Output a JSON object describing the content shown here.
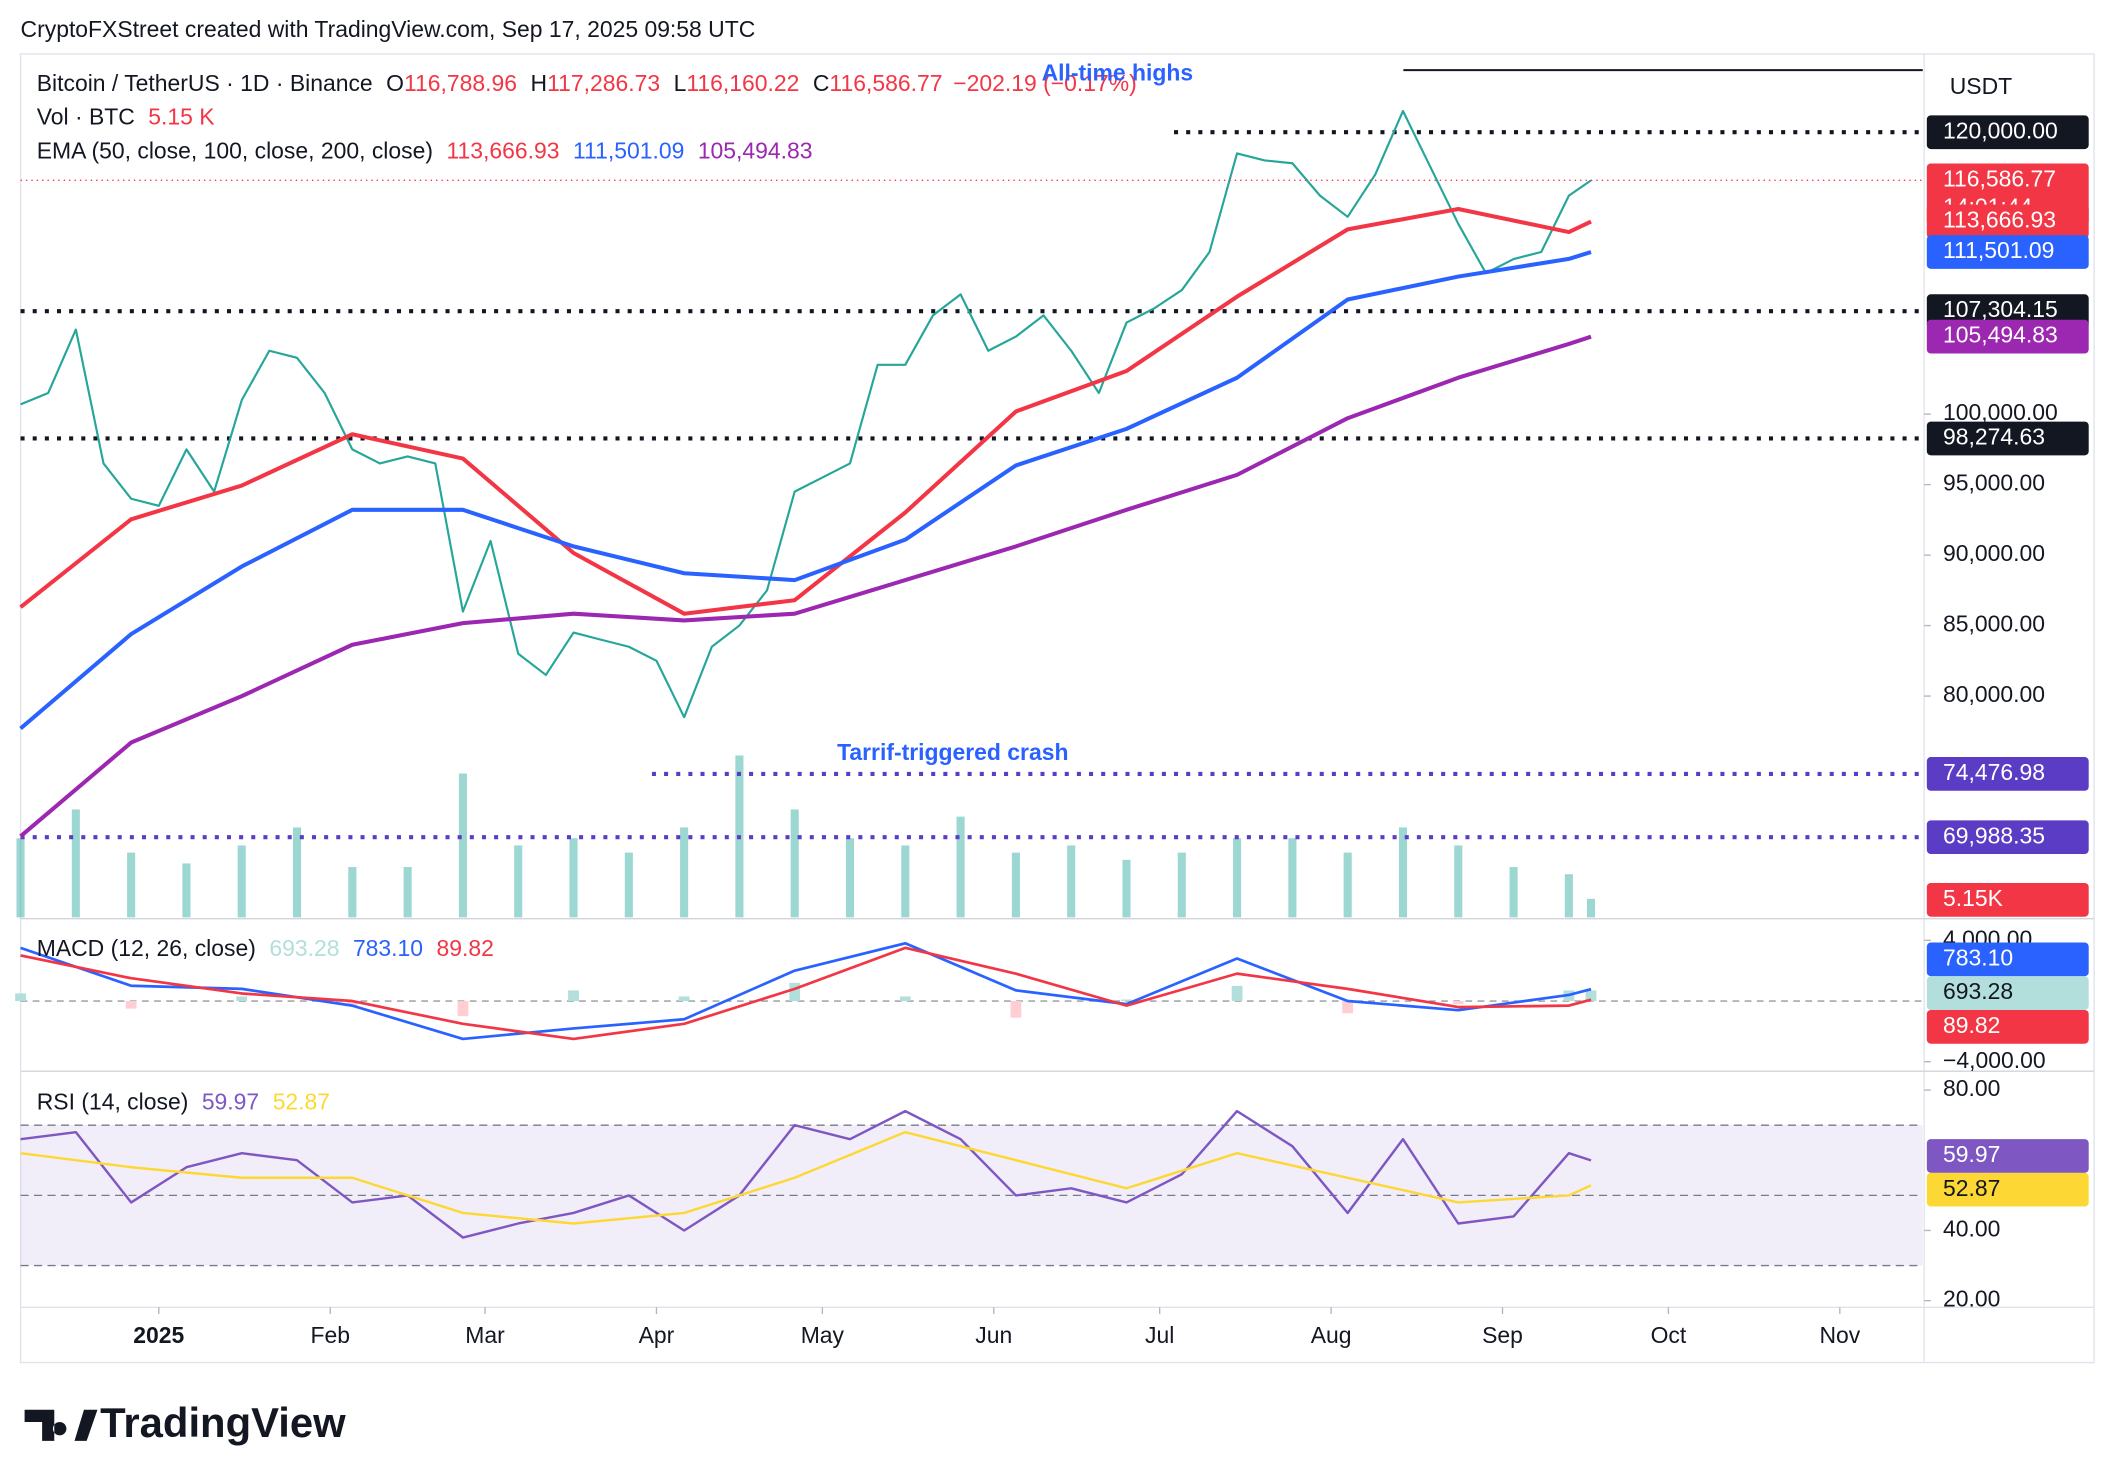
{
  "header": "CryptoFXStreet created with TradingView.com, Sep 17, 2025 09:58 UTC",
  "footer": {
    "brand": "TradingView"
  },
  "chart_data": [
    {
      "type": "line",
      "symbol": "Bitcoin / TetherUS · 1D · Binance",
      "ohlc": [
        {
          "key": "O",
          "value": 116788.96,
          "label": "116,788.96"
        },
        {
          "key": "H",
          "value": 117286.73,
          "label": "117,286.73"
        },
        {
          "key": "L",
          "value": 116160.22,
          "label": "116,160.22"
        },
        {
          "key": "C",
          "value": 116586.77,
          "label": "116,586.77"
        }
      ],
      "change": "−202.19 (−0.17%)",
      "countdown": "14:01:44",
      "currency": "USDT",
      "volume_title": "Vol · BTC",
      "volume_legend": "5.15 K",
      "ema_title": "EMA (50, close, 100, close, 200, close)",
      "annotations": [
        "All-time highs",
        "Tarrif-triggered crash"
      ],
      "xlim": [
        -25,
        319
      ],
      "xticks": [
        {
          "value": 0,
          "label": "2025"
        },
        {
          "value": 31,
          "label": "Feb"
        },
        {
          "value": 59,
          "label": "Mar"
        },
        {
          "value": 90,
          "label": "Apr"
        },
        {
          "value": 120,
          "label": "May"
        },
        {
          "value": 151,
          "label": "Jun"
        },
        {
          "value": 181,
          "label": "Jul"
        },
        {
          "value": 212,
          "label": "Aug"
        },
        {
          "value": 243,
          "label": "Sep"
        },
        {
          "value": 273,
          "label": "Oct"
        },
        {
          "value": 304,
          "label": "Nov"
        }
      ],
      "ylim": [
        64300,
        125550
      ],
      "yticks": [
        {
          "value": 80000,
          "label": "80,000.00"
        },
        {
          "value": 85000,
          "label": "85,000.00"
        },
        {
          "value": 90000,
          "label": "90,000.00"
        },
        {
          "value": 95000,
          "label": "95,000.00"
        },
        {
          "value": 100000,
          "label": "100,000.00"
        }
      ],
      "levels": [
        {
          "value": 124400,
          "color": "#131722",
          "style": "solid"
        },
        {
          "value": 120000,
          "label": "120,000.00",
          "color": "#131722",
          "style": "dotted"
        },
        {
          "value": 107304.15,
          "label": "107,304.15",
          "color": "#131722",
          "style": "dotted"
        },
        {
          "value": 98274.63,
          "label": "98,274.63",
          "color": "#131722",
          "style": "dotted"
        },
        {
          "value": 74476.98,
          "label": "74,476.98",
          "color": "#5b3cc4",
          "style": "dotted"
        },
        {
          "value": 69988.35,
          "label": "69,988.35",
          "color": "#5b3cc4",
          "style": "dotted"
        }
      ],
      "volume": {
        "color": "#26a69a",
        "label_color": "#f23645",
        "x": [
          -25,
          -15,
          -5,
          5,
          15,
          25,
          35,
          45,
          55,
          65,
          75,
          85,
          95,
          105,
          115,
          125,
          135,
          145,
          155,
          165,
          175,
          185,
          195,
          205,
          215,
          225,
          235,
          245,
          255,
          259
        ],
        "values": [
          22,
          30,
          18,
          15,
          20,
          25,
          14,
          14,
          40,
          20,
          22,
          18,
          25,
          45,
          30,
          22,
          20,
          28,
          18,
          20,
          16,
          18,
          22,
          22,
          18,
          25,
          20,
          14,
          12,
          5.15
        ],
        "value_labels": [
          null,
          null,
          null,
          null,
          null,
          null,
          null,
          null,
          null,
          null,
          null,
          null,
          null,
          null,
          null,
          null,
          null,
          null,
          null,
          null,
          null,
          null,
          null,
          null,
          null,
          null,
          null,
          null,
          null,
          "5.15K"
        ]
      },
      "series": [
        {
          "color": "#26a69a",
          "label_color": "#f23645",
          "width": 1.6,
          "x": [
            -25,
            -20,
            -15,
            -10,
            -5,
            0,
            5,
            10,
            15,
            20,
            25,
            30,
            35,
            40,
            45,
            50,
            55,
            60,
            65,
            70,
            75,
            80,
            85,
            90,
            95,
            100,
            105,
            110,
            115,
            120,
            125,
            130,
            135,
            140,
            145,
            150,
            155,
            160,
            165,
            170,
            175,
            180,
            185,
            190,
            195,
            200,
            205,
            210,
            215,
            220,
            225,
            230,
            235,
            240,
            245,
            250,
            255,
            259
          ],
          "values": [
            100700,
            101500,
            106000,
            96500,
            94000,
            93500,
            97500,
            94500,
            101000,
            104500,
            104000,
            101500,
            97500,
            96500,
            97000,
            96500,
            86000,
            91000,
            83000,
            81500,
            84500,
            84000,
            83500,
            82500,
            78500,
            83500,
            85000,
            87500,
            94500,
            95500,
            96500,
            103500,
            103500,
            107000,
            108500,
            104500,
            105500,
            107000,
            104500,
            101500,
            106500,
            107500,
            108800,
            111500,
            118500,
            118000,
            117800,
            115500,
            114000,
            117000,
            121500,
            117500,
            113500,
            110000,
            111000,
            111500,
            115500,
            116586.77
          ],
          "value_labels": [
            null,
            null,
            null,
            null,
            null,
            null,
            null,
            null,
            null,
            null,
            null,
            null,
            null,
            null,
            null,
            null,
            null,
            null,
            null,
            null,
            null,
            null,
            null,
            null,
            null,
            null,
            null,
            null,
            null,
            null,
            null,
            null,
            null,
            null,
            null,
            null,
            null,
            null,
            null,
            null,
            null,
            null,
            null,
            null,
            null,
            null,
            null,
            null,
            null,
            null,
            null,
            null,
            null,
            null,
            null,
            null,
            null,
            "116,586.77"
          ]
        },
        {
          "color": "#f23645",
          "width": 3,
          "x": [
            -25,
            -5,
            15,
            35,
            55,
            75,
            95,
            115,
            135,
            155,
            175,
            195,
            215,
            235,
            255,
            259
          ],
          "values": [
            86300,
            92540,
            94930,
            98570,
            96850,
            90150,
            85840,
            86800,
            93020,
            100190,
            103060,
            108330,
            113110,
            114550,
            112920,
            113666.93
          ],
          "value_labels": [
            null,
            null,
            null,
            null,
            null,
            null,
            null,
            null,
            null,
            null,
            null,
            null,
            null,
            null,
            null,
            "113,666.93"
          ]
        },
        {
          "color": "#2962ff",
          "width": 3,
          "x": [
            -25,
            -5,
            15,
            35,
            55,
            75,
            95,
            115,
            135,
            155,
            175,
            195,
            215,
            235,
            255,
            259
          ],
          "values": [
            77700,
            84400,
            89190,
            93210,
            93210,
            90620,
            88710,
            88230,
            91100,
            96360,
            98950,
            102580,
            108130,
            109760,
            111010,
            111501.09
          ],
          "value_labels": [
            null,
            null,
            null,
            null,
            null,
            null,
            null,
            null,
            null,
            null,
            null,
            null,
            null,
            null,
            null,
            "111,501.09"
          ]
        },
        {
          "color": "#9c27b0",
          "width": 3,
          "x": [
            -25,
            -5,
            15,
            35,
            55,
            75,
            95,
            115,
            135,
            155,
            175,
            195,
            215,
            235,
            255,
            259
          ],
          "values": [
            70050,
            76700,
            80000,
            83640,
            85170,
            85840,
            85360,
            85840,
            88230,
            90620,
            93210,
            95690,
            99710,
            102580,
            104980,
            105494.83
          ],
          "value_labels": [
            null,
            null,
            null,
            null,
            null,
            null,
            null,
            null,
            null,
            null,
            null,
            null,
            null,
            null,
            null,
            "105,494.83"
          ]
        }
      ]
    },
    {
      "type": "line",
      "title": "MACD (12, 26, close)",
      "xlim": [
        -25,
        319
      ],
      "ylim": [
        -4533,
        5333
      ],
      "yticks": [
        {
          "value": 4000,
          "label": "4,000.00"
        },
        {
          "value": -4000,
          "label": "−4,000.00"
        }
      ],
      "hlines": [
        0
      ],
      "series": [
        {
          "kind": "bar",
          "color": "#b2dfdb",
          "neg_color": "#ffcdd2",
          "x": [
            -25,
            -5,
            15,
            35,
            55,
            75,
            95,
            115,
            135,
            155,
            175,
            195,
            215,
            235,
            255,
            259
          ],
          "values": [
            500,
            -500,
            300,
            -300,
            -1000,
            700,
            300,
            1200,
            300,
            -1100,
            100,
            1000,
            -800,
            -200,
            700,
            693.28
          ],
          "value_labels": [
            null,
            null,
            null,
            null,
            null,
            null,
            null,
            null,
            null,
            null,
            null,
            null,
            null,
            null,
            null,
            "693.28"
          ]
        },
        {
          "color": "#2962ff",
          "width": 2,
          "x": [
            -25,
            -5,
            15,
            35,
            55,
            75,
            95,
            115,
            135,
            155,
            175,
            195,
            215,
            235,
            255,
            259
          ],
          "values": [
            3500,
            1000,
            800,
            -300,
            -2500,
            -1800,
            -1200,
            2000,
            3800,
            700,
            -200,
            2800,
            0,
            -600,
            400,
            783.1
          ],
          "value_labels": [
            null,
            null,
            null,
            null,
            null,
            null,
            null,
            null,
            null,
            null,
            null,
            null,
            null,
            null,
            null,
            "783.10"
          ]
        },
        {
          "color": "#f23645",
          "width": 2,
          "x": [
            -25,
            -5,
            15,
            35,
            55,
            75,
            95,
            115,
            135,
            155,
            175,
            195,
            215,
            235,
            255,
            259
          ],
          "values": [
            3000,
            1500,
            500,
            0,
            -1500,
            -2500,
            -1500,
            800,
            3500,
            1800,
            -300,
            1800,
            800,
            -400,
            -300,
            89.82
          ],
          "value_labels": [
            null,
            null,
            null,
            null,
            null,
            null,
            null,
            null,
            null,
            null,
            null,
            null,
            null,
            null,
            null,
            "89.82"
          ]
        }
      ]
    },
    {
      "type": "line",
      "title": "RSI (14, close)",
      "xlim": [
        -25,
        319
      ],
      "ylim": [
        18.5,
        85
      ],
      "yticks": [
        {
          "value": 80,
          "label": "80.00"
        },
        {
          "value": 40,
          "label": "40.00"
        },
        {
          "value": 20,
          "label": "20.00"
        }
      ],
      "bands": [
        70,
        50,
        30
      ],
      "band_fill": "#7e57c2",
      "series": [
        {
          "color": "#7e57c2",
          "width": 1.8,
          "x": [
            -25,
            -15,
            -5,
            5,
            15,
            25,
            35,
            45,
            55,
            65,
            75,
            85,
            95,
            105,
            115,
            125,
            135,
            145,
            155,
            165,
            175,
            185,
            195,
            205,
            215,
            225,
            235,
            245,
            255,
            259
          ],
          "values": [
            66,
            68,
            48,
            58,
            62,
            60,
            48,
            50,
            38,
            42,
            45,
            50,
            40,
            50,
            70,
            66,
            74,
            66,
            50,
            52,
            48,
            56,
            74,
            64,
            45,
            66,
            42,
            44,
            62,
            59.97
          ],
          "value_labels": [
            null,
            null,
            null,
            null,
            null,
            null,
            null,
            null,
            null,
            null,
            null,
            null,
            null,
            null,
            null,
            null,
            null,
            null,
            null,
            null,
            null,
            null,
            null,
            null,
            null,
            null,
            null,
            null,
            null,
            "59.97"
          ]
        },
        {
          "color": "#fdd835",
          "width": 1.8,
          "x": [
            -25,
            -5,
            15,
            35,
            55,
            75,
            95,
            115,
            135,
            155,
            175,
            195,
            215,
            235,
            255,
            259
          ],
          "values": [
            62,
            58,
            55,
            55,
            45,
            42,
            45,
            55,
            68,
            60,
            52,
            62,
            55,
            48,
            50,
            52.87
          ],
          "value_labels": [
            null,
            null,
            null,
            null,
            null,
            null,
            null,
            null,
            null,
            null,
            null,
            null,
            null,
            null,
            null,
            "52.87"
          ]
        }
      ]
    }
  ]
}
